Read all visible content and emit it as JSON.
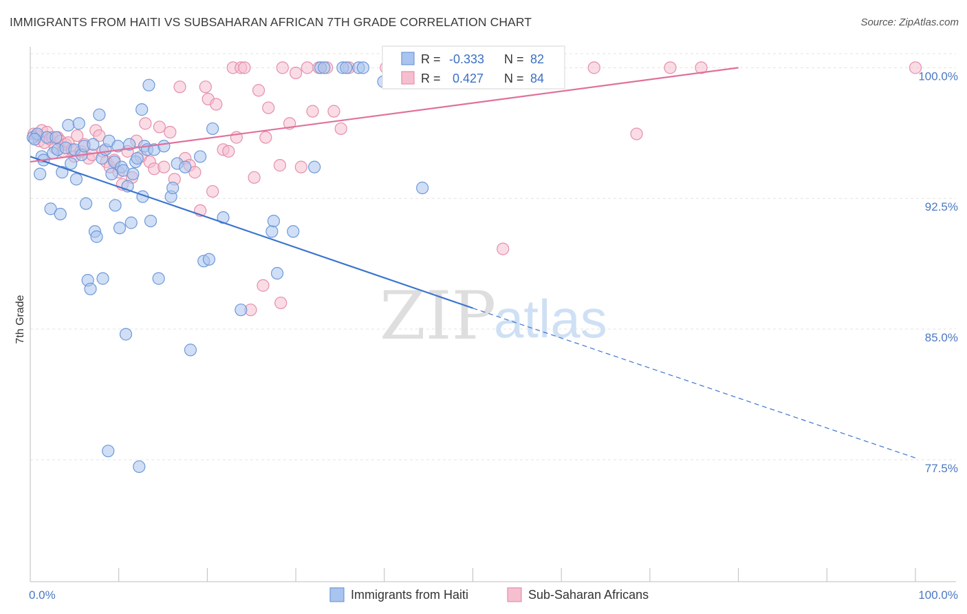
{
  "header": {
    "title": "IMMIGRANTS FROM HAITI VS SUBSAHARAN AFRICAN 7TH GRADE CORRELATION CHART",
    "source": "Source: ZipAtlas.com"
  },
  "watermark": {
    "zip": "ZIP",
    "atlas": "atlas"
  },
  "colors": {
    "blue_fill": "#a9c4ee",
    "blue_stroke": "#6d98d8",
    "blue_line": "#3a74cf",
    "pink_fill": "#f6bfd0",
    "pink_stroke": "#e58eab",
    "pink_line": "#e0709a",
    "grid": "#e3e3e3",
    "tick_text": "#4a78c2"
  },
  "stats": [
    {
      "r_label": "R =",
      "r_value": "-0.333",
      "n_label": "N =",
      "n_value": "82"
    },
    {
      "r_label": "R =",
      "r_value": "0.427",
      "n_label": "N =",
      "n_value": "84"
    }
  ],
  "chart_data": {
    "type": "scatter",
    "title": "IMMIGRANTS FROM HAITI VS SUBSAHARAN AFRICAN 7TH GRADE CORRELATION CHART",
    "xlabel": "",
    "ylabel": "7th Grade",
    "xlim": [
      0,
      100
    ],
    "ylim": [
      70.5,
      101.2
    ],
    "x_tick_labels": [
      "0.0%",
      "100.0%"
    ],
    "y_ticks": [
      {
        "value": 100.0,
        "label": "100.0%"
      },
      {
        "value": 92.5,
        "label": "92.5%"
      },
      {
        "value": 85.0,
        "label": "85.0%"
      },
      {
        "value": 77.5,
        "label": "77.5%"
      }
    ],
    "grid": true,
    "legend_position": "bottom",
    "series": [
      {
        "name": "Immigrants from Haiti",
        "color": "#a9c4ee",
        "trend": {
          "x0": 0,
          "y0": 94.9,
          "x1": 50,
          "y1": 86.2,
          "dashed_to_x": 100,
          "dashed_to_y": 77.6
        },
        "points": [
          [
            0.3,
            96.0
          ],
          [
            0.8,
            96.2
          ],
          [
            0.5,
            95.9
          ],
          [
            1.1,
            93.9
          ],
          [
            1.3,
            94.9
          ],
          [
            1.5,
            94.7
          ],
          [
            1.9,
            96.0
          ],
          [
            2.3,
            91.9
          ],
          [
            2.6,
            95.1
          ],
          [
            2.9,
            96.0
          ],
          [
            3.1,
            95.3
          ],
          [
            3.4,
            91.6
          ],
          [
            3.6,
            94.0
          ],
          [
            4.0,
            95.4
          ],
          [
            4.3,
            96.7
          ],
          [
            4.6,
            94.5
          ],
          [
            5.0,
            95.3
          ],
          [
            5.2,
            93.6
          ],
          [
            5.5,
            96.8
          ],
          [
            5.8,
            95.0
          ],
          [
            6.1,
            95.5
          ],
          [
            6.3,
            92.2
          ],
          [
            6.5,
            87.8
          ],
          [
            6.8,
            87.3
          ],
          [
            7.1,
            95.6
          ],
          [
            7.3,
            90.6
          ],
          [
            7.5,
            90.3
          ],
          [
            7.8,
            97.3
          ],
          [
            8.1,
            94.8
          ],
          [
            8.2,
            87.9
          ],
          [
            8.5,
            95.3
          ],
          [
            8.8,
            78.0
          ],
          [
            8.9,
            95.8
          ],
          [
            9.2,
            93.9
          ],
          [
            9.5,
            94.6
          ],
          [
            9.6,
            92.1
          ],
          [
            9.9,
            95.5
          ],
          [
            10.1,
            90.8
          ],
          [
            10.3,
            94.3
          ],
          [
            10.5,
            94.1
          ],
          [
            10.8,
            84.7
          ],
          [
            11.0,
            93.2
          ],
          [
            11.2,
            95.6
          ],
          [
            11.4,
            91.1
          ],
          [
            11.6,
            93.9
          ],
          [
            11.9,
            94.6
          ],
          [
            12.1,
            94.8
          ],
          [
            12.3,
            77.1
          ],
          [
            12.6,
            97.6
          ],
          [
            12.7,
            92.6
          ],
          [
            12.9,
            95.5
          ],
          [
            13.2,
            95.3
          ],
          [
            13.4,
            99.0
          ],
          [
            13.6,
            91.2
          ],
          [
            14.0,
            95.3
          ],
          [
            14.5,
            87.9
          ],
          [
            15.1,
            95.5
          ],
          [
            15.9,
            92.6
          ],
          [
            16.1,
            93.1
          ],
          [
            16.6,
            94.5
          ],
          [
            17.5,
            94.3
          ],
          [
            18.1,
            83.8
          ],
          [
            19.2,
            94.9
          ],
          [
            19.6,
            88.9
          ],
          [
            20.2,
            89.0
          ],
          [
            20.6,
            96.5
          ],
          [
            21.8,
            91.4
          ],
          [
            23.8,
            86.1
          ],
          [
            27.3,
            90.6
          ],
          [
            27.5,
            91.2
          ],
          [
            27.9,
            88.2
          ],
          [
            29.7,
            90.6
          ],
          [
            32.1,
            94.3
          ],
          [
            32.8,
            100.0
          ],
          [
            33.2,
            100.0
          ],
          [
            35.3,
            100.0
          ],
          [
            37.1,
            100.0
          ],
          [
            37.6,
            100.0
          ],
          [
            39.9,
            99.2
          ],
          [
            44.3,
            93.1
          ],
          [
            55.6,
            100.0
          ],
          [
            35.7,
            100.0
          ]
        ]
      },
      {
        "name": "Sub-Saharan Africans",
        "color": "#f6bfd0",
        "trend": {
          "x0": 0,
          "y0": 94.6,
          "x1": 80,
          "y1": 100.0
        },
        "points": [
          [
            0.4,
            96.2
          ],
          [
            0.7,
            96.1
          ],
          [
            1.0,
            95.8
          ],
          [
            1.3,
            96.4
          ],
          [
            1.6,
            95.7
          ],
          [
            1.9,
            96.3
          ],
          [
            2.2,
            95.9
          ],
          [
            2.5,
            96.0
          ],
          [
            2.8,
            95.4
          ],
          [
            3.1,
            96.0
          ],
          [
            3.4,
            95.8
          ],
          [
            3.7,
            95.2
          ],
          [
            4.0,
            95.6
          ],
          [
            4.3,
            95.7
          ],
          [
            4.7,
            95.3
          ],
          [
            5.0,
            94.9
          ],
          [
            5.3,
            96.1
          ],
          [
            5.7,
            95.2
          ],
          [
            6.1,
            95.6
          ],
          [
            6.6,
            94.8
          ],
          [
            7.0,
            95.0
          ],
          [
            7.4,
            96.4
          ],
          [
            7.8,
            96.1
          ],
          [
            8.2,
            95.2
          ],
          [
            8.6,
            94.6
          ],
          [
            9.0,
            94.3
          ],
          [
            9.5,
            94.7
          ],
          [
            10.0,
            94.0
          ],
          [
            10.4,
            93.3
          ],
          [
            11.0,
            95.2
          ],
          [
            11.5,
            93.7
          ],
          [
            12.0,
            95.8
          ],
          [
            12.5,
            94.9
          ],
          [
            13.0,
            96.8
          ],
          [
            13.5,
            94.6
          ],
          [
            14.0,
            94.2
          ],
          [
            14.6,
            96.6
          ],
          [
            15.1,
            94.3
          ],
          [
            15.8,
            96.3
          ],
          [
            16.3,
            93.6
          ],
          [
            16.9,
            98.9
          ],
          [
            17.5,
            94.8
          ],
          [
            18.0,
            94.4
          ],
          [
            18.6,
            94.0
          ],
          [
            19.2,
            91.8
          ],
          [
            19.8,
            98.9
          ],
          [
            20.1,
            98.2
          ],
          [
            20.6,
            92.9
          ],
          [
            21.0,
            97.9
          ],
          [
            21.8,
            95.3
          ],
          [
            22.4,
            95.2
          ],
          [
            22.9,
            100.0
          ],
          [
            23.3,
            96.0
          ],
          [
            23.8,
            100.0
          ],
          [
            24.2,
            100.0
          ],
          [
            24.9,
            86.1
          ],
          [
            25.3,
            93.7
          ],
          [
            25.8,
            98.7
          ],
          [
            26.3,
            87.5
          ],
          [
            26.6,
            96.0
          ],
          [
            26.9,
            97.7
          ],
          [
            28.2,
            94.4
          ],
          [
            28.3,
            86.5
          ],
          [
            28.5,
            100.0
          ],
          [
            29.3,
            96.8
          ],
          [
            30.0,
            99.7
          ],
          [
            30.6,
            94.3
          ],
          [
            31.3,
            100.0
          ],
          [
            31.9,
            97.5
          ],
          [
            32.6,
            100.0
          ],
          [
            33.5,
            100.0
          ],
          [
            34.3,
            97.5
          ],
          [
            35.1,
            96.5
          ],
          [
            36.0,
            100.0
          ],
          [
            40.2,
            100.0
          ],
          [
            43.8,
            100.0
          ],
          [
            46.5,
            100.0
          ],
          [
            47.2,
            100.0
          ],
          [
            53.4,
            89.6
          ],
          [
            63.7,
            100.0
          ],
          [
            68.5,
            96.2
          ],
          [
            72.3,
            100.0
          ],
          [
            75.8,
            100.0
          ],
          [
            100.0,
            100.0
          ]
        ]
      }
    ]
  }
}
